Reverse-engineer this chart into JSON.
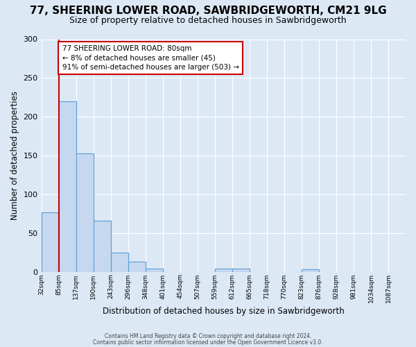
{
  "title1": "77, SHEERING LOWER ROAD, SAWBRIDGEWORTH, CM21 9LG",
  "title2": "Size of property relative to detached houses in Sawbridgeworth",
  "xlabel": "Distribution of detached houses by size in Sawbridgeworth",
  "ylabel": "Number of detached properties",
  "footer1": "Contains HM Land Registry data © Crown copyright and database right 2024.",
  "footer2": "Contains public sector information licensed under the Open Government Licence v3.0.",
  "bin_labels": [
    "32sqm",
    "85sqm",
    "137sqm",
    "190sqm",
    "243sqm",
    "296sqm",
    "348sqm",
    "401sqm",
    "454sqm",
    "507sqm",
    "559sqm",
    "612sqm",
    "665sqm",
    "718sqm",
    "770sqm",
    "823sqm",
    "876sqm",
    "928sqm",
    "981sqm",
    "1034sqm",
    "1087sqm"
  ],
  "bar_values": [
    77,
    220,
    153,
    66,
    25,
    13,
    4,
    0,
    0,
    0,
    4,
    4,
    0,
    0,
    0,
    3,
    0,
    0,
    0,
    0,
    0
  ],
  "ylim": [
    0,
    300
  ],
  "yticks": [
    0,
    50,
    100,
    150,
    200,
    250,
    300
  ],
  "bar_color": "#c5d8f0",
  "bar_edge_color": "#5b9bd5",
  "annotation_title": "77 SHEERING LOWER ROAD: 80sqm",
  "annotation_line1": "← 8% of detached houses are smaller (45)",
  "annotation_line2": "91% of semi-detached houses are larger (503) →",
  "annotation_box_color": "#ffffff",
  "annotation_box_edge_color": "#cc0000",
  "red_line_color": "#cc0000",
  "background_color": "#dce9f5",
  "plot_bg_color": "#dce9f5",
  "grid_color": "#ffffff",
  "title1_fontsize": 11,
  "title2_fontsize": 9,
  "xlabel_fontsize": 8.5,
  "ylabel_fontsize": 8.5
}
